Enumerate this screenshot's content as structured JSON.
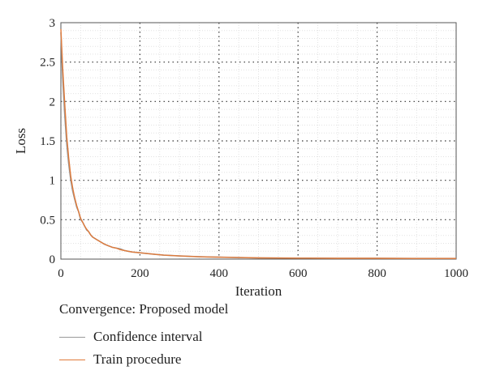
{
  "chart_data": {
    "type": "line",
    "title": "",
    "xlabel": "Iteration",
    "ylabel": "Loss",
    "xlim": [
      0,
      1000
    ],
    "ylim": [
      0,
      3
    ],
    "xticks": [
      "0",
      "200",
      "400",
      "600",
      "800",
      "1000"
    ],
    "yticks": [
      "0",
      "0.5",
      "1",
      "1.5",
      "2",
      "2.5",
      "3"
    ],
    "grid": true,
    "legend_title": "Convergence: Proposed model",
    "legend_position": "bottom-left",
    "series": [
      {
        "name": "Confidence interval",
        "color": "#9a9a9a",
        "x": [
          0,
          5,
          10,
          15,
          20,
          25,
          30,
          35,
          40,
          45,
          50,
          55,
          60,
          65,
          70,
          75,
          80,
          90,
          100,
          110,
          120,
          130,
          140,
          150,
          160,
          170,
          180,
          190,
          200,
          220,
          240,
          260,
          280,
          300,
          350,
          400,
          450,
          500,
          600,
          700,
          800,
          900,
          1000
        ],
        "y": [
          2.88,
          2.25,
          1.8,
          1.45,
          1.2,
          1.0,
          0.86,
          0.76,
          0.66,
          0.6,
          0.5,
          0.47,
          0.42,
          0.37,
          0.35,
          0.31,
          0.28,
          0.25,
          0.22,
          0.19,
          0.17,
          0.15,
          0.14,
          0.13,
          0.11,
          0.1,
          0.09,
          0.085,
          0.08,
          0.07,
          0.06,
          0.05,
          0.045,
          0.04,
          0.03,
          0.025,
          0.02,
          0.015,
          0.012,
          0.01,
          0.01,
          0.008,
          0.008
        ]
      },
      {
        "name": "Train procedure",
        "color": "#e07a3a",
        "x": [
          0,
          5,
          10,
          15,
          20,
          25,
          30,
          35,
          40,
          45,
          50,
          55,
          60,
          65,
          70,
          75,
          80,
          90,
          100,
          110,
          120,
          130,
          140,
          150,
          160,
          170,
          180,
          190,
          200,
          220,
          240,
          260,
          280,
          300,
          350,
          400,
          450,
          500,
          600,
          700,
          800,
          900,
          1000
        ],
        "y": [
          2.92,
          2.4,
          1.95,
          1.55,
          1.28,
          1.05,
          0.9,
          0.78,
          0.68,
          0.6,
          0.52,
          0.47,
          0.42,
          0.38,
          0.35,
          0.31,
          0.28,
          0.25,
          0.22,
          0.19,
          0.17,
          0.15,
          0.14,
          0.12,
          0.11,
          0.1,
          0.09,
          0.085,
          0.08,
          0.07,
          0.06,
          0.05,
          0.045,
          0.04,
          0.03,
          0.025,
          0.02,
          0.015,
          0.012,
          0.01,
          0.01,
          0.008,
          0.008
        ]
      }
    ]
  }
}
